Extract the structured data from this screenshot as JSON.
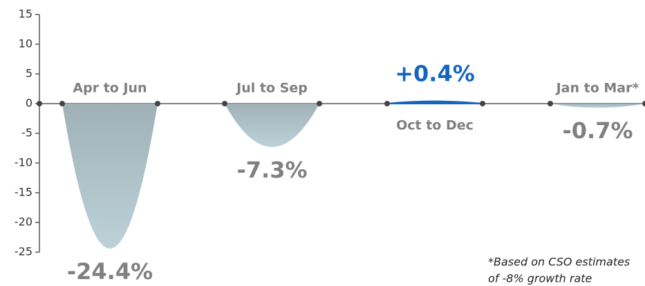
{
  "chart_data": {
    "type": "curve",
    "categories": [
      "Apr to Jun",
      "Jul to Sep",
      "Oct to Dec",
      "Jan to Mar*"
    ],
    "values": [
      -24.4,
      -7.3,
      0.4,
      -0.7
    ],
    "value_labels": [
      "-24.4%",
      "-7.3%",
      "+0.4%",
      "-0.7%"
    ],
    "negative_color": "#a9bcc2",
    "positive_color": "#1565c0",
    "ylim": [
      -25,
      15
    ],
    "yticks": [
      -25,
      -20,
      -15,
      -10,
      -5,
      0,
      5,
      10,
      15
    ],
    "footnote": [
      "*Based on CSO estimates",
      "of -8% growth rate"
    ]
  }
}
